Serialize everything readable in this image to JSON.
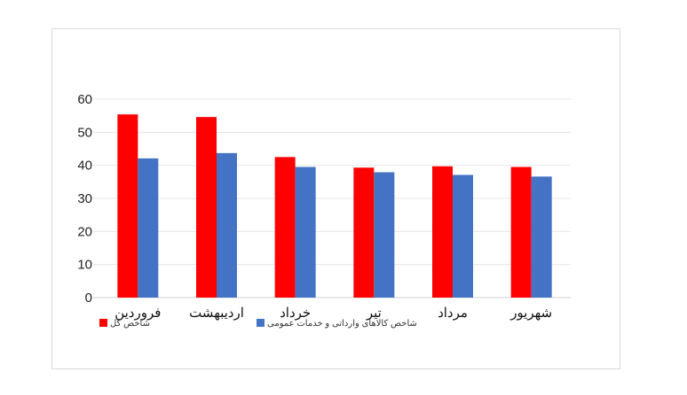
{
  "chart_data": {
    "type": "bar",
    "categories": [
      "فروردین",
      "اردیبهشت",
      "خرداد",
      "تیر",
      "مرداد",
      "شهریور"
    ],
    "series": [
      {
        "name": "شاخص کل",
        "color": "#ff0000",
        "values": [
          55.4,
          54.6,
          42.5,
          39.3,
          39.7,
          39.5
        ]
      },
      {
        "name": "شاخص کالاهای وارداتی و خدمات عمومی",
        "color": "#4472c4",
        "values": [
          42.1,
          43.7,
          39.5,
          37.9,
          37.1,
          36.6
        ]
      }
    ],
    "ylim": [
      0,
      60
    ],
    "yticks": [
      "0",
      "10",
      "20",
      "30",
      "40",
      "50",
      "60"
    ],
    "grid": true,
    "legend": "bottom"
  }
}
